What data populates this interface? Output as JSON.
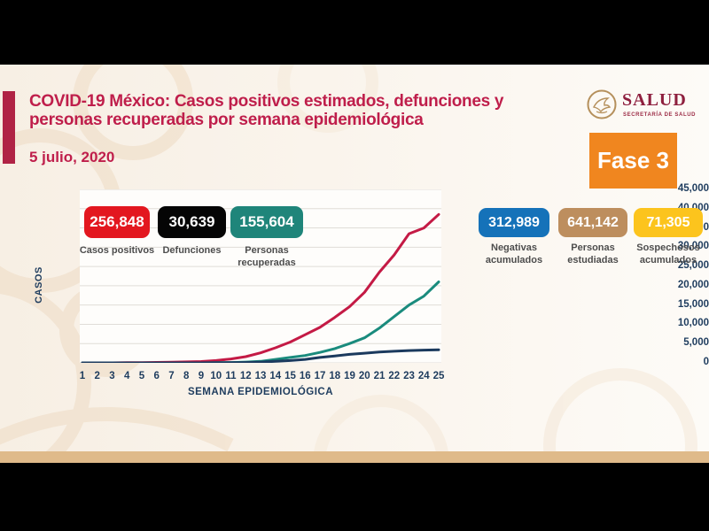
{
  "header": {
    "title_line1": "COVID-19 México: Casos positivos estimados, defunciones y",
    "title_line2": "personas recuperadas por semana epidemiológica",
    "date": "5 julio, 2020",
    "logo_name": "SALUD",
    "logo_subtitle": "SECRETARÍA DE SALUD",
    "phase_label": "Fase 3",
    "phase_color": "#f0861f",
    "title_color": "#bf1e4b"
  },
  "stats": {
    "left": [
      {
        "value": "256,848",
        "label": "Casos positivos",
        "lines": [
          "Casos positivos"
        ],
        "color": "#e3171f"
      },
      {
        "value": "30,639",
        "label": "Defunciones",
        "lines": [
          "Defunciones"
        ],
        "color": "#050505"
      },
      {
        "value": "155,604",
        "label": "Personas recuperadas",
        "lines": [
          "Personas",
          "recuperadas"
        ],
        "color": "#1f857a"
      }
    ],
    "right": [
      {
        "value": "312,989",
        "label": "Negativas acumulados",
        "lines": [
          "Negativas",
          "acumulados"
        ],
        "color": "#1572b9"
      },
      {
        "value": "641,142",
        "label": "Personas estudiadas",
        "lines": [
          "Personas",
          "estudiadas"
        ],
        "color": "#bd8e5e"
      },
      {
        "value": "71,305",
        "label": "Sospechosos acumulados",
        "lines": [
          "Sospechosos",
          "acumulados"
        ],
        "color": "#fcc41d"
      }
    ]
  },
  "chart_data": {
    "type": "line",
    "title": "Casos positivos estimados, defunciones y personas recuperadas por semana epidemiológica",
    "xlabel": "SEMANA EPIDEMIOLÓGICA",
    "ylabel": "CASOS",
    "x": [
      1,
      2,
      3,
      4,
      5,
      6,
      7,
      8,
      9,
      10,
      11,
      12,
      13,
      14,
      15,
      16,
      17,
      18,
      19,
      20,
      21,
      22,
      23,
      24,
      25
    ],
    "y_tick_labels": [
      "45,000",
      "40,000",
      "35,000",
      "30,000",
      "25,000",
      "20,000",
      "15,000",
      "10,000",
      "5,000",
      "0"
    ],
    "ylim": [
      0,
      45000
    ],
    "grid": true,
    "legend_position": "none",
    "series": [
      {
        "name": "Casos positivos",
        "color": "#c41a45",
        "values": [
          0,
          0,
          0,
          50,
          80,
          120,
          180,
          250,
          350,
          600,
          1000,
          1600,
          2600,
          3900,
          5400,
          7300,
          9200,
          11800,
          14600,
          18300,
          23500,
          28000,
          33500,
          35000,
          38500
        ]
      },
      {
        "name": "Personas recuperadas",
        "color": "#1a8b7d",
        "values": [
          0,
          0,
          0,
          0,
          0,
          0,
          0,
          0,
          0,
          50,
          100,
          200,
          400,
          900,
          1400,
          1900,
          2700,
          3700,
          5000,
          6500,
          9000,
          12000,
          15000,
          17300,
          21000
        ]
      },
      {
        "name": "Defunciones",
        "color": "#1b3a5e",
        "values": [
          0,
          0,
          0,
          0,
          0,
          0,
          0,
          0,
          0,
          20,
          50,
          100,
          200,
          400,
          600,
          900,
          1400,
          1800,
          2200,
          2500,
          2800,
          3000,
          3200,
          3300,
          3400
        ]
      }
    ]
  }
}
